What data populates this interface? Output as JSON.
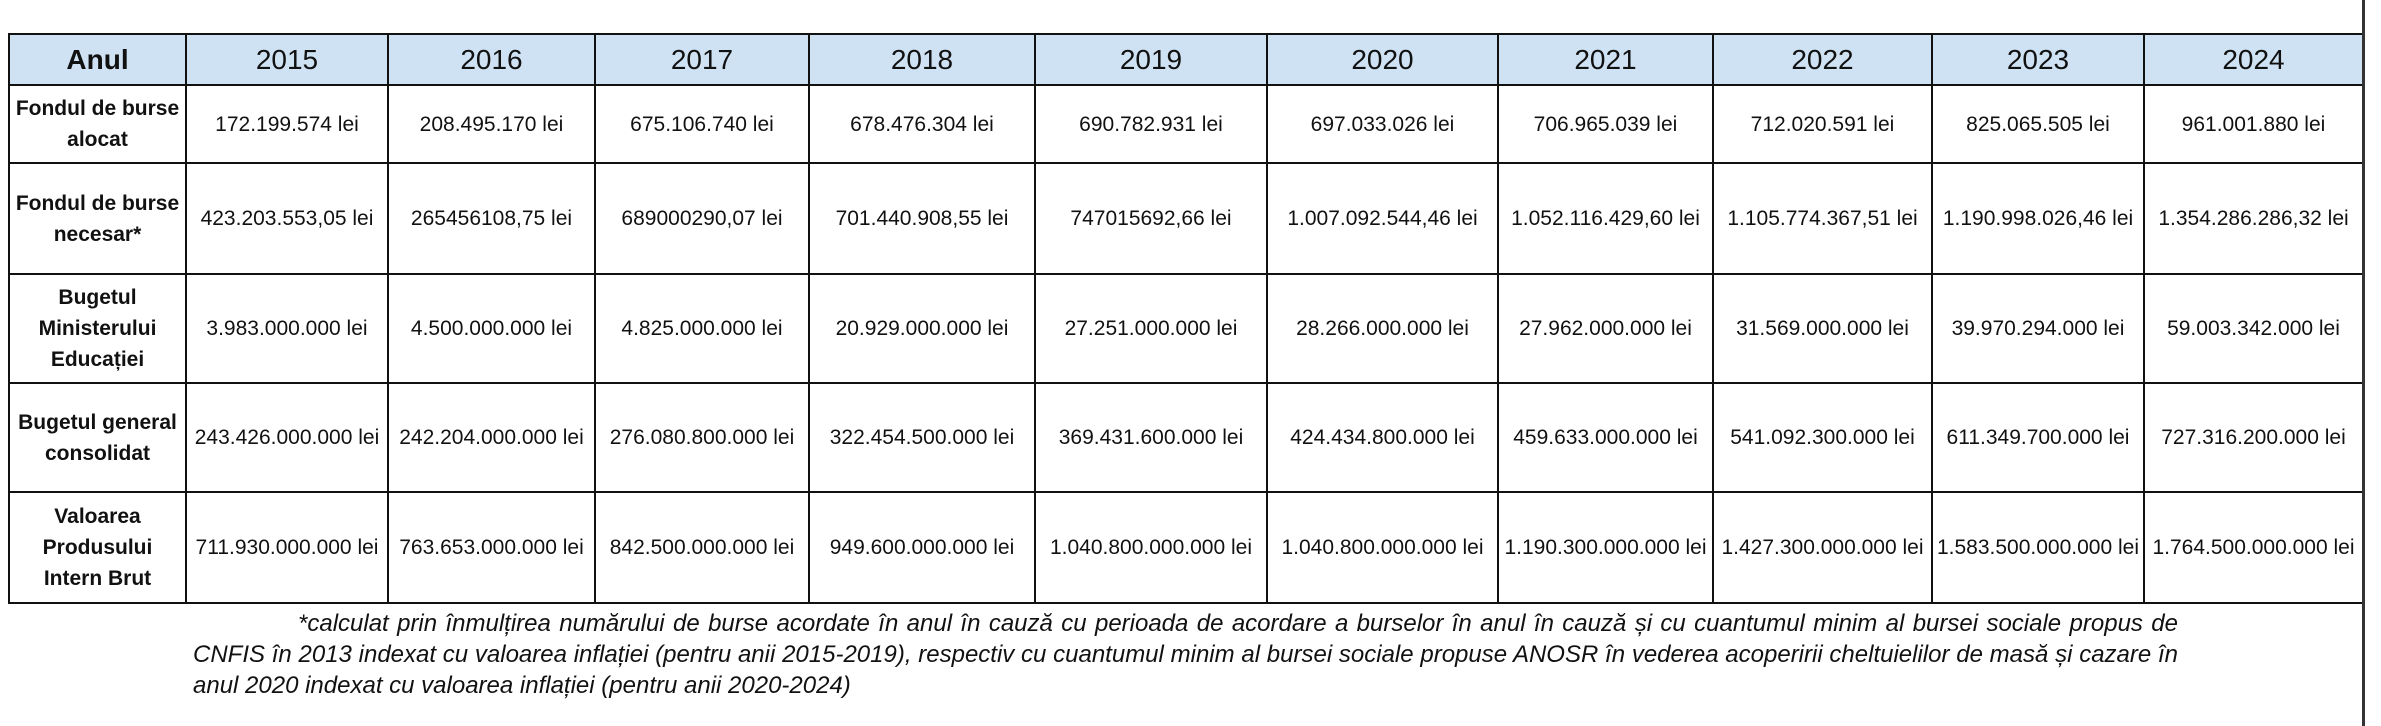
{
  "table": {
    "header": [
      "Anul",
      "2015",
      "2016",
      "2017",
      "2018",
      "2019",
      "2020",
      "2021",
      "2022",
      "2023",
      "2024"
    ],
    "rows": [
      [
        "Fondul de burse alocat",
        "172.199.574 lei",
        "208.495.170 lei",
        "675.106.740 lei",
        "678.476.304 lei",
        "690.782.931 lei",
        "697.033.026 lei",
        "706.965.039 lei",
        "712.020.591 lei",
        "825.065.505 lei",
        "961.001.880 lei"
      ],
      [
        "Fondul de burse necesar*",
        "423.203.553,05 lei",
        "265456108,75 lei",
        "689000290,07 lei",
        "701.440.908,55 lei",
        "747015692,66 lei",
        "1.007.092.544,46 lei",
        "1.052.116.429,60 lei",
        "1.105.774.367,51 lei",
        "1.190.998.026,46 lei",
        "1.354.286.286,32 lei"
      ],
      [
        "Bugetul Ministerului Educației",
        "3.983.000.000 lei",
        "4.500.000.000 lei",
        "4.825.000.000 lei",
        "20.929.000.000 lei",
        "27.251.000.000 lei",
        "28.266.000.000 lei",
        "27.962.000.000 lei",
        "31.569.000.000 lei",
        "39.970.294.000 lei",
        "59.003.342.000 lei"
      ],
      [
        "Bugetul general consolidat",
        "243.426.000.000 lei",
        "242.204.000.000 lei",
        "276.080.800.000 lei",
        "322.454.500.000 lei",
        "369.431.600.000 lei",
        "424.434.800.000 lei",
        "459.633.000.000 lei",
        "541.092.300.000 lei",
        "611.349.700.000 lei",
        "727.316.200.000 lei"
      ],
      [
        "Valoarea Produsului Intern Brut",
        "711.930.000.000 lei",
        "763.653.000.000 lei",
        "842.500.000.000 lei",
        "949.600.000.000 lei",
        "1.040.800.000.000 lei",
        "1.040.800.000.000 lei",
        "1.190.300.000.000 lei",
        "1.427.300.000.000 lei",
        "1.583.500.000.000 lei",
        "1.764.500.000.000 lei"
      ]
    ]
  },
  "footnote": "*calculat prin înmulțirea numărului de burse acordate în anul în cauză cu perioada de acordare a burselor în anul în cauză și cu cuantumul minim al bursei sociale propus de CNFIS în 2013 indexat cu valoarea inflației (pentru anii 2015-2019), respectiv cu cuantumul minim al bursei sociale propuse ANOSR în vederea acoperirii cheltuielilor de masă și cazare în anul 2020 indexat cu valoarea inflației (pentru anii 2020-2024)"
}
